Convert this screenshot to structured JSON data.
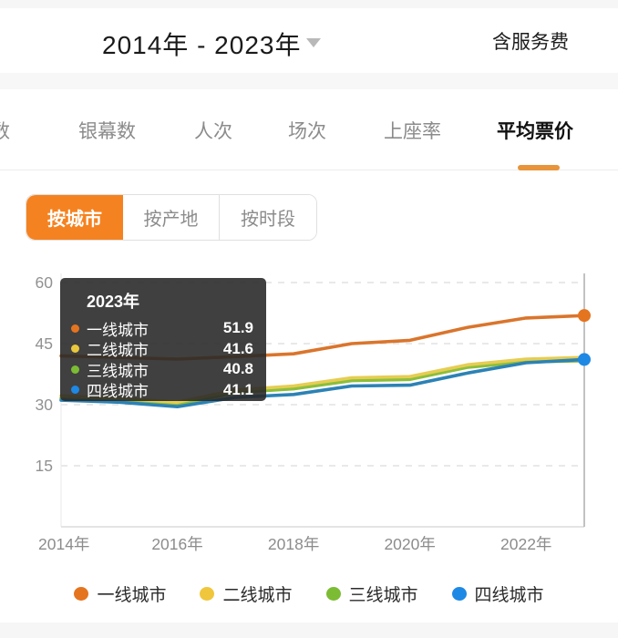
{
  "header": {
    "date_range": "2014年 - 2023年",
    "service_fee_label": "含服务费"
  },
  "tabs": {
    "clipped_first": "数",
    "items": [
      {
        "label": "银幕数"
      },
      {
        "label": "人次"
      },
      {
        "label": "场次"
      },
      {
        "label": "上座率"
      },
      {
        "label": "平均票价"
      }
    ],
    "active": "平均票价"
  },
  "subtabs": {
    "items": [
      {
        "label": "按城市"
      },
      {
        "label": "按产地"
      },
      {
        "label": "按时段"
      }
    ],
    "active": "按城市"
  },
  "tooltip": {
    "title": "2023年",
    "rows": [
      {
        "label": "一线城市",
        "value": "51.9",
        "color": "#E5741F"
      },
      {
        "label": "二线城市",
        "value": "41.6",
        "color": "#E9C73C"
      },
      {
        "label": "三线城市",
        "value": "40.8",
        "color": "#7CBC34"
      },
      {
        "label": "四线城市",
        "value": "41.1",
        "color": "#1E88E5"
      }
    ]
  },
  "legend": {
    "items": [
      {
        "label": "一线城市",
        "color": "#E5741F"
      },
      {
        "label": "二线城市",
        "color": "#F0C63C"
      },
      {
        "label": "三线城市",
        "color": "#7CBC34"
      },
      {
        "label": "四线城市",
        "color": "#1E88E5"
      }
    ]
  },
  "colors": {
    "accent_orange": "#F58220",
    "checkbox_fill": "#F08320",
    "service_fee_text": "#EFA052",
    "tab_underline": "#E8943A",
    "grid_line": "#e2e2e2",
    "axis_line": "#dcdcdc",
    "indicator_line": "#b3b3b3",
    "tick_text": "#919191"
  },
  "chart_data": {
    "type": "line",
    "title": "平均票价 按城市 2014年-2023年（含服务费）",
    "x": [
      2014,
      2015,
      2016,
      2017,
      2018,
      2019,
      2020,
      2021,
      2022,
      2023
    ],
    "x_tick_years": [
      2014,
      2016,
      2018,
      2020,
      2022
    ],
    "x_tick_labels": [
      "2014年",
      "2016年",
      "2018年",
      "2020年",
      "2022年"
    ],
    "y_ticks": [
      15,
      30,
      45,
      60
    ],
    "ylim": [
      0,
      60
    ],
    "grid": "dashed-horizontal",
    "legend_position": "bottom",
    "hover_year": 2023,
    "series": [
      {
        "name": "一线城市",
        "color": "#DA752C",
        "dot_color": "#E5741F",
        "end_dot": true,
        "values": [
          42.0,
          41.6,
          41.2,
          41.8,
          42.5,
          45.0,
          45.8,
          49.0,
          51.3,
          51.9
        ]
      },
      {
        "name": "二线城市",
        "color": "#E6CD52",
        "dot_color": "#E9C73C",
        "end_dot": false,
        "values": [
          32.2,
          31.6,
          30.6,
          33.6,
          34.6,
          36.6,
          36.9,
          39.8,
          41.2,
          41.6
        ]
      },
      {
        "name": "三线城市",
        "color": "#8BBE3D",
        "dot_color": "#7CBC34",
        "end_dot": false,
        "values": [
          31.6,
          31.0,
          29.9,
          33.0,
          33.9,
          35.9,
          36.2,
          39.2,
          40.5,
          40.8
        ]
      },
      {
        "name": "四线城市",
        "color": "#2C82B5",
        "dot_color": "#1E88E5",
        "end_dot": true,
        "values": [
          31.1,
          30.6,
          29.5,
          31.8,
          32.5,
          34.6,
          34.8,
          37.8,
          40.3,
          41.1
        ]
      }
    ],
    "draw_order": [
      2,
      1,
      3,
      0
    ]
  }
}
